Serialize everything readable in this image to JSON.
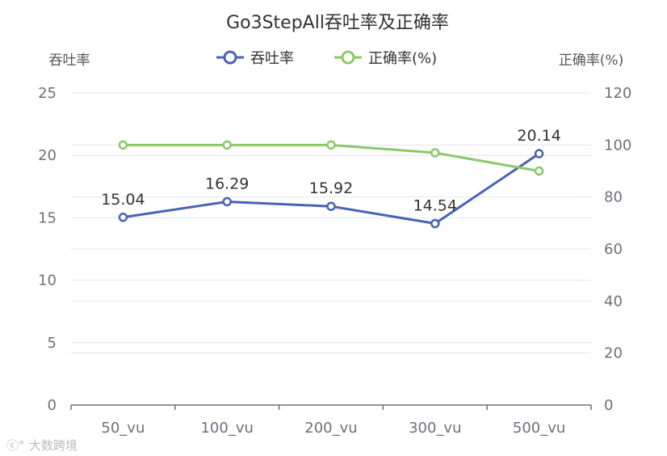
{
  "chart_data": {
    "type": "line",
    "title": "Go3StepAll吞吐率及正确率",
    "categories": [
      "50_vu",
      "100_vu",
      "200_vu",
      "300_vu",
      "500_vu"
    ],
    "y_left": {
      "name": "吞吐率",
      "min": 0,
      "max": 25,
      "ticks": [
        0,
        5,
        10,
        15,
        20,
        25
      ]
    },
    "y_right": {
      "name": "正确率(%)",
      "min": 0,
      "max": 120,
      "ticks": [
        0,
        20,
        40,
        60,
        80,
        100,
        120
      ]
    },
    "series": [
      {
        "name": "吞吐率",
        "axis": "left",
        "color": "#4a62b5",
        "values": [
          15.04,
          16.29,
          15.92,
          14.54,
          20.14
        ],
        "labels": [
          "15.04",
          "16.29",
          "15.92",
          "14.54",
          "20.14"
        ]
      },
      {
        "name": "正确率(%)",
        "axis": "right",
        "color": "#8cc868",
        "values": [
          100,
          100,
          100,
          97,
          90
        ]
      }
    ],
    "legend_position": "top-center",
    "grid": "horizontal"
  },
  "watermark": {
    "text": "大数跨境"
  }
}
